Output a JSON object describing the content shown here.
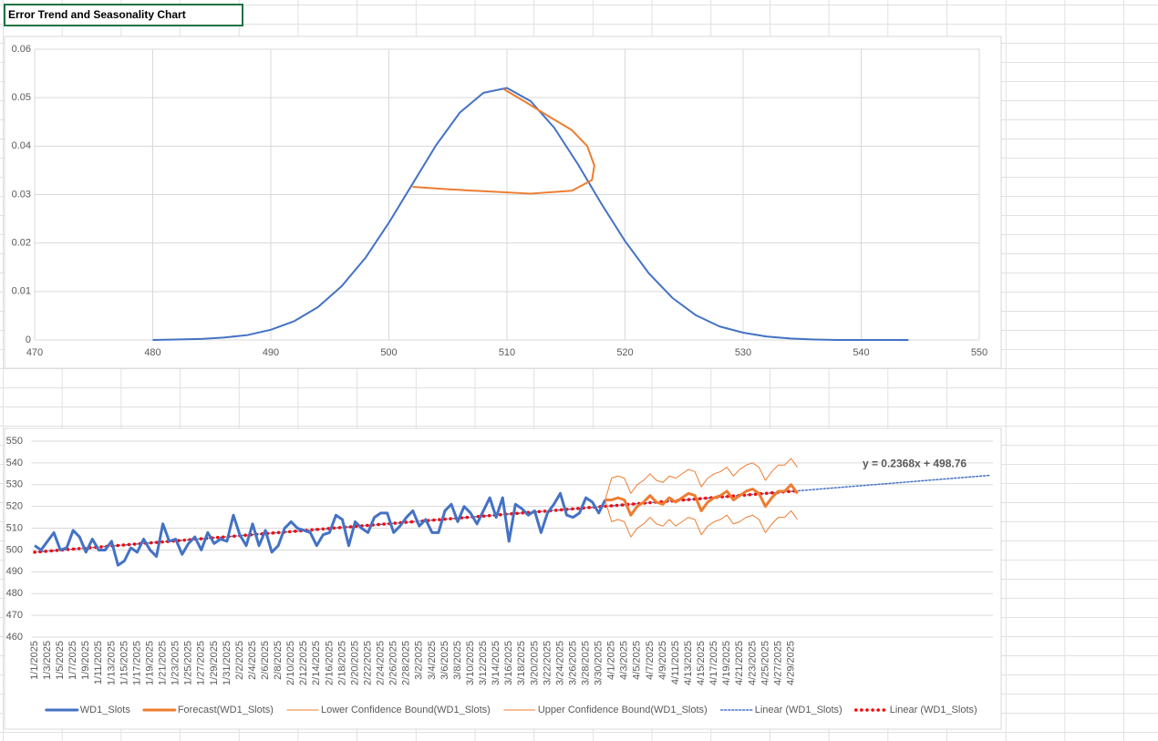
{
  "cell": {
    "text": "Error Trend and Seasonality Chart"
  },
  "chart_data": [
    {
      "type": "line",
      "xlim": [
        470,
        550
      ],
      "xticks": [
        470,
        480,
        490,
        500,
        510,
        520,
        530,
        540,
        550
      ],
      "ylim": [
        0,
        0.06
      ],
      "yticks": [
        0,
        0.01,
        0.02,
        0.03,
        0.04,
        0.05,
        0.06
      ],
      "grid": true,
      "series": [
        {
          "color": "#4472c4",
          "line_width": 2,
          "x": [
            480,
            482,
            484,
            486,
            488,
            490,
            492,
            494,
            496,
            498,
            500,
            502,
            504,
            506,
            508,
            510,
            512,
            514,
            516,
            518,
            520,
            522,
            524,
            526,
            528,
            530,
            532,
            534,
            536,
            538,
            540,
            542,
            544
          ],
          "values": [
            0,
            0.0001,
            0.0002,
            0.0005,
            0.001,
            0.0021,
            0.0039,
            0.0068,
            0.0111,
            0.0169,
            0.0242,
            0.0322,
            0.0402,
            0.0469,
            0.051,
            0.052,
            0.0493,
            0.0438,
            0.0363,
            0.0281,
            0.0204,
            0.0138,
            0.0087,
            0.0051,
            0.0028,
            0.0015,
            0.0007,
            0.0003,
            0.0001,
            0,
            0,
            0,
            0
          ]
        },
        {
          "color": "#ed7d31",
          "line_width": 2,
          "x": [
            509.7,
            511.5,
            513.5,
            515.5,
            516.8,
            517.4,
            517.2,
            515.5,
            512,
            508,
            505,
            502
          ],
          "values": [
            0.0518,
            0.0492,
            0.0462,
            0.0433,
            0.04,
            0.036,
            0.033,
            0.0308,
            0.0302,
            0.0307,
            0.0311,
            0.0316
          ]
        }
      ]
    },
    {
      "type": "line",
      "ylim": [
        460,
        550
      ],
      "yticks": [
        460,
        470,
        480,
        490,
        500,
        510,
        520,
        530,
        540,
        550
      ],
      "grid": true,
      "legend": "bottom",
      "categories": [
        "1/1/2025",
        null,
        "1/3/2025",
        null,
        "1/5/2025",
        null,
        "1/7/2025",
        null,
        "1/9/2025",
        null,
        "1/11/2025",
        null,
        "1/13/2025",
        null,
        "1/15/2025",
        null,
        "1/17/2025",
        null,
        "1/19/2025",
        null,
        "1/21/2025",
        null,
        "1/23/2025",
        null,
        "1/25/2025",
        null,
        "1/27/2025",
        null,
        "1/29/2025",
        null,
        "1/31/2025",
        null,
        "2/2/2025",
        null,
        "2/4/2025",
        null,
        "2/6/2025",
        null,
        "2/8/2025",
        null,
        "2/10/2025",
        null,
        "2/12/2025",
        null,
        "2/14/2025",
        null,
        "2/16/2025",
        null,
        "2/18/2025",
        null,
        "2/20/2025",
        null,
        "2/22/2025",
        null,
        "2/24/2025",
        null,
        "2/26/2025",
        null,
        "2/28/2025",
        null,
        "3/2/2025",
        null,
        "3/4/2025",
        null,
        "3/6/2025",
        null,
        "3/8/2025",
        null,
        "3/10/2025",
        null,
        "3/12/2025",
        null,
        "3/14/2025",
        null,
        "3/16/2025",
        null,
        "3/18/2025",
        null,
        "3/20/2025",
        null,
        "3/22/2025",
        null,
        "3/24/2025",
        null,
        "3/26/2025",
        null,
        "3/28/2025",
        null,
        "3/30/2025",
        null,
        "4/1/2025",
        null,
        "4/3/2025",
        null,
        "4/5/2025",
        null,
        "4/7/2025",
        null,
        "4/9/2025",
        null,
        "4/11/2025",
        null,
        "4/13/2025",
        null,
        "4/15/2025",
        null,
        "4/17/2025",
        null,
        "4/19/2025",
        null,
        "4/21/2025",
        null,
        "4/23/2025",
        null,
        "4/25/2025",
        null,
        "4/27/2025",
        null,
        "4/29/2025",
        null
      ],
      "series": [
        {
          "name": "WD1_Slots",
          "color": "#4472c4",
          "line_width": 3,
          "values": [
            502,
            500,
            504,
            508,
            500,
            501,
            509,
            506,
            499,
            505,
            500,
            500,
            504,
            493,
            495,
            501,
            499,
            505,
            500,
            497,
            512,
            504,
            505,
            498,
            503,
            506,
            500,
            508,
            503,
            505,
            504,
            516,
            507,
            502,
            512,
            502,
            509,
            499,
            502,
            510,
            513,
            510,
            509,
            508,
            502,
            507,
            508,
            516,
            514,
            502,
            513,
            510,
            508,
            515,
            517,
            517,
            508,
            511,
            515,
            518,
            511,
            514,
            508,
            508,
            518,
            521,
            513,
            520,
            517,
            512,
            518,
            524,
            515,
            524,
            504,
            521,
            519,
            516,
            518,
            508,
            517,
            521,
            526,
            516,
            515,
            517,
            524,
            522,
            517,
            523,
            null,
            null,
            null,
            null,
            null,
            null,
            null,
            null,
            null,
            null,
            null,
            null,
            null,
            null,
            null,
            null,
            null,
            null,
            null,
            null,
            null,
            null,
            null,
            null,
            null,
            null,
            null,
            null,
            null,
            null
          ]
        },
        {
          "name": "Forecast(WD1_Slots)",
          "color": "#ed7d31",
          "line_width": 3,
          "values": [
            null,
            null,
            null,
            null,
            null,
            null,
            null,
            null,
            null,
            null,
            null,
            null,
            null,
            null,
            null,
            null,
            null,
            null,
            null,
            null,
            null,
            null,
            null,
            null,
            null,
            null,
            null,
            null,
            null,
            null,
            null,
            null,
            null,
            null,
            null,
            null,
            null,
            null,
            null,
            null,
            null,
            null,
            null,
            null,
            null,
            null,
            null,
            null,
            null,
            null,
            null,
            null,
            null,
            null,
            null,
            null,
            null,
            null,
            null,
            null,
            null,
            null,
            null,
            null,
            null,
            null,
            null,
            null,
            null,
            null,
            null,
            null,
            null,
            null,
            null,
            null,
            null,
            null,
            null,
            null,
            null,
            null,
            null,
            null,
            null,
            null,
            null,
            null,
            null,
            523,
            523,
            524,
            523,
            516,
            520,
            522,
            525,
            522,
            521,
            524,
            522,
            524,
            526,
            525,
            518,
            522,
            524,
            525,
            527,
            523,
            525,
            527,
            528,
            526,
            520,
            524,
            527,
            527,
            530,
            526
          ]
        },
        {
          "name": "Lower Confidence Bound(WD1_Slots)",
          "color": "#ed7d31",
          "line_width": 1,
          "values": [
            null,
            null,
            null,
            null,
            null,
            null,
            null,
            null,
            null,
            null,
            null,
            null,
            null,
            null,
            null,
            null,
            null,
            null,
            null,
            null,
            null,
            null,
            null,
            null,
            null,
            null,
            null,
            null,
            null,
            null,
            null,
            null,
            null,
            null,
            null,
            null,
            null,
            null,
            null,
            null,
            null,
            null,
            null,
            null,
            null,
            null,
            null,
            null,
            null,
            null,
            null,
            null,
            null,
            null,
            null,
            null,
            null,
            null,
            null,
            null,
            null,
            null,
            null,
            null,
            null,
            null,
            null,
            null,
            null,
            null,
            null,
            null,
            null,
            null,
            null,
            null,
            null,
            null,
            null,
            null,
            null,
            null,
            null,
            null,
            null,
            null,
            null,
            null,
            null,
            523,
            513,
            514,
            513,
            506,
            510,
            512,
            515,
            512,
            511,
            514,
            511,
            513,
            515,
            514,
            507,
            511,
            513,
            514,
            516,
            512,
            513,
            515,
            516,
            514,
            508,
            512,
            515,
            515,
            518,
            514
          ]
        },
        {
          "name": "Upper Confidence Bound(WD1_Slots)",
          "color": "#ed7d31",
          "line_width": 1,
          "values": [
            null,
            null,
            null,
            null,
            null,
            null,
            null,
            null,
            null,
            null,
            null,
            null,
            null,
            null,
            null,
            null,
            null,
            null,
            null,
            null,
            null,
            null,
            null,
            null,
            null,
            null,
            null,
            null,
            null,
            null,
            null,
            null,
            null,
            null,
            null,
            null,
            null,
            null,
            null,
            null,
            null,
            null,
            null,
            null,
            null,
            null,
            null,
            null,
            null,
            null,
            null,
            null,
            null,
            null,
            null,
            null,
            null,
            null,
            null,
            null,
            null,
            null,
            null,
            null,
            null,
            null,
            null,
            null,
            null,
            null,
            null,
            null,
            null,
            null,
            null,
            null,
            null,
            null,
            null,
            null,
            null,
            null,
            null,
            null,
            null,
            null,
            null,
            null,
            null,
            523,
            533,
            534,
            533,
            526,
            530,
            532,
            535,
            532,
            531,
            534,
            533,
            535,
            537,
            536,
            529,
            533,
            535,
            536,
            538,
            534,
            537,
            539,
            540,
            538,
            532,
            536,
            539,
            539,
            542,
            538
          ]
        }
      ],
      "trendlines": [
        {
          "name": "Linear (WD1_Slots)",
          "color": "#4472c4",
          "style": "dotted",
          "slope": 0.2368,
          "intercept": 498.76,
          "forward": 30,
          "equation": "y = 0.2368x + 498.76"
        },
        {
          "name": "Linear (WD1_Slots)",
          "color": "#ff0000",
          "style": "round-dots",
          "slope": 0.2368,
          "intercept": 498.76,
          "forward": 0
        }
      ]
    }
  ]
}
